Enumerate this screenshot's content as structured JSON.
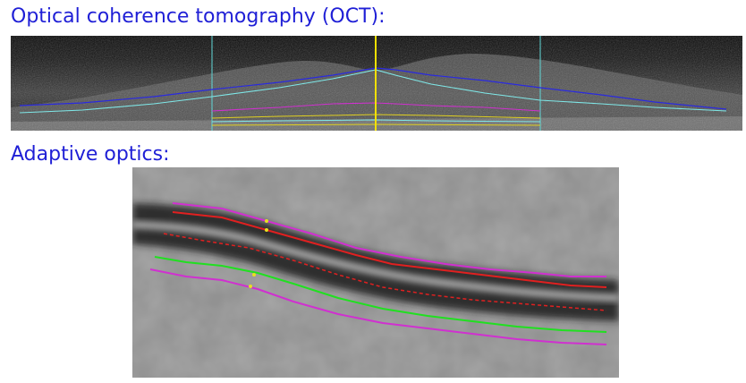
{
  "headings": {
    "oct": "Optical coherence tomography (OCT):",
    "adaptive_optics": "Adaptive optics:"
  },
  "colors": {
    "heading": "#1f1fd6",
    "oct_outer_layer": "#2a2ae0",
    "oct_inner_layer": "#7fe8e8",
    "oct_band_magenta": "#d030d0",
    "oct_band_yellow": "#e0d020",
    "oct_cursor": "#f2e000",
    "oct_guides": "#60d8d8",
    "ao_wall_outer": "#d030d0",
    "ao_lumen_red": "#e02020",
    "ao_centerline": "#e02020",
    "ao_lumen_green": "#20e020",
    "ao_marker": "#e8e020"
  },
  "icons": {
    "oct_scan": "oct-retina-scan-image",
    "ao_scan": "adaptive-optics-vessel-image"
  }
}
